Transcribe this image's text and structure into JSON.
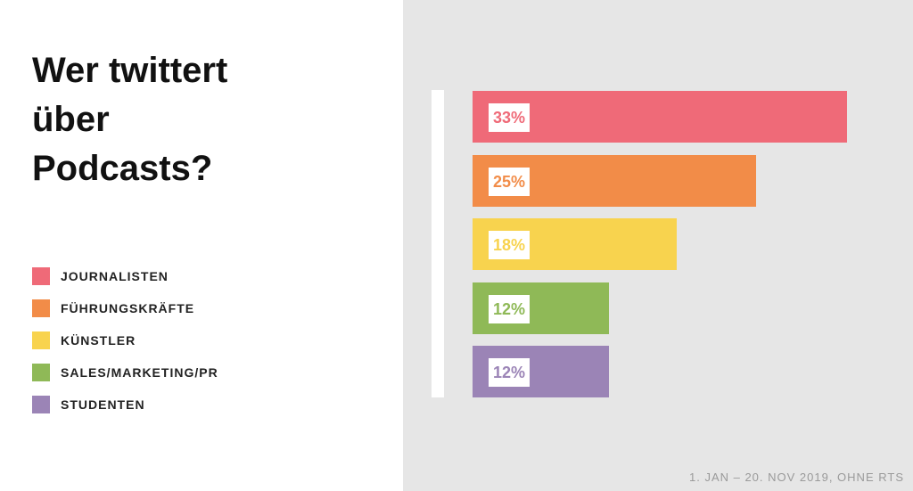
{
  "chart_data": {
    "type": "bar",
    "orientation": "horizontal",
    "title": "Wer twittert\nüber\nPodcasts?",
    "categories": [
      "JOURNALISTEN",
      "FÜHRUNGSKRÄFTE",
      "KÜNSTLER",
      "SALES/MARKETING/PR",
      "STUDENTEN"
    ],
    "values": [
      33,
      25,
      18,
      12,
      12
    ],
    "value_labels": [
      "33%",
      "25%",
      "18%",
      "12%",
      "12%"
    ],
    "colors": [
      "#ef6a78",
      "#f28c48",
      "#f8d34e",
      "#8fb957",
      "#9b84b6"
    ],
    "xlim": [
      0,
      33
    ],
    "grid": false,
    "legend_position": "left",
    "footnote": "1. JAN – 20. NOV 2019, OHNE RTS"
  }
}
